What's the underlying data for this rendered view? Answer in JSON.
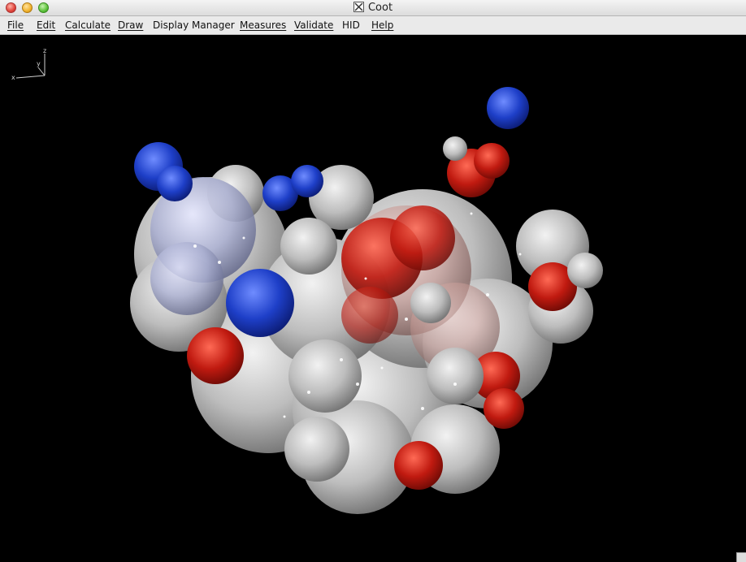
{
  "window": {
    "title": "Coot",
    "title_icon": "x11-icon"
  },
  "menubar": {
    "items": [
      {
        "label": "File"
      },
      {
        "label": "Edit"
      },
      {
        "label": "Calculate"
      },
      {
        "label": "Draw"
      },
      {
        "label": "Display Manager"
      },
      {
        "label": "Measures"
      },
      {
        "label": "Validate"
      },
      {
        "label": "HID"
      },
      {
        "label": "Help"
      }
    ]
  },
  "viewport": {
    "background": "#000000",
    "axes_labels": {
      "x": "x",
      "y": "y",
      "z": "z"
    },
    "surface_colors": {
      "positive": "#1e3fc8",
      "negative": "#c01a10",
      "neutral": "#c8c8c8"
    }
  }
}
